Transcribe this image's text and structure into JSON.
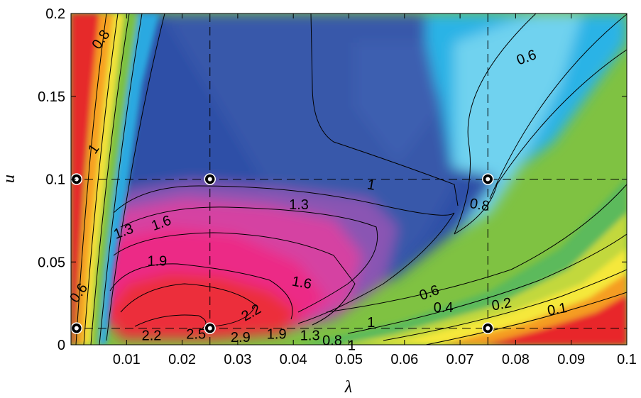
{
  "chart_data": {
    "type": "heatmap",
    "title": "",
    "xlabel": "λ",
    "ylabel": "u",
    "xlim": [
      0,
      0.1
    ],
    "ylim": [
      0,
      0.2
    ],
    "x_ticks": [
      {
        "value": 0.01,
        "label": "0.01"
      },
      {
        "value": 0.02,
        "label": "0.02"
      },
      {
        "value": 0.03,
        "label": "0.03"
      },
      {
        "value": 0.04,
        "label": "0.04"
      },
      {
        "value": 0.05,
        "label": "0.05"
      },
      {
        "value": 0.06,
        "label": "0.06"
      },
      {
        "value": 0.07,
        "label": "0.07"
      },
      {
        "value": 0.08,
        "label": "0.08"
      },
      {
        "value": 0.09,
        "label": "0.09"
      },
      {
        "value": 0.1,
        "label": "0.1"
      }
    ],
    "y_ticks": [
      {
        "value": 0,
        "label": "0"
      },
      {
        "value": 0.05,
        "label": "0.05"
      },
      {
        "value": 0.1,
        "label": "0.1"
      },
      {
        "value": 0.15,
        "label": "0.15"
      },
      {
        "value": 0.2,
        "label": "0.2"
      }
    ],
    "reference_lines": {
      "x": [
        0.025,
        0.075
      ],
      "y": [
        0.01,
        0.1
      ]
    },
    "sample_points": [
      {
        "x": 0.001,
        "y": 0.1
      },
      {
        "x": 0.025,
        "y": 0.1
      },
      {
        "x": 0.075,
        "y": 0.1
      },
      {
        "x": 0.001,
        "y": 0.01
      },
      {
        "x": 0.025,
        "y": 0.01
      },
      {
        "x": 0.075,
        "y": 0.01
      }
    ],
    "contour_labels": [
      {
        "text": "0.8",
        "x": 0.0055,
        "y": 0.184,
        "angle": -55
      },
      {
        "text": "1",
        "x": 0.0042,
        "y": 0.118,
        "angle": -55
      },
      {
        "text": "0.6",
        "x": 0.082,
        "y": 0.173,
        "angle": -20
      },
      {
        "text": "1",
        "x": 0.054,
        "y": 0.096,
        "angle": 10
      },
      {
        "text": "0.8",
        "x": 0.0735,
        "y": 0.084,
        "angle": 10
      },
      {
        "text": "1.3",
        "x": 0.041,
        "y": 0.084,
        "angle": 0
      },
      {
        "text": "1.3",
        "x": 0.0095,
        "y": 0.068,
        "angle": -20
      },
      {
        "text": "1.6",
        "x": 0.0163,
        "y": 0.073,
        "angle": -20
      },
      {
        "text": "1.9",
        "x": 0.0155,
        "y": 0.05,
        "angle": 0
      },
      {
        "text": "1.6",
        "x": 0.0415,
        "y": 0.037,
        "angle": 10
      },
      {
        "text": "0.6",
        "x": 0.0015,
        "y": 0.031,
        "angle": -55
      },
      {
        "text": "2.2",
        "x": 0.0325,
        "y": 0.019,
        "angle": -30
      },
      {
        "text": "1",
        "x": 0.054,
        "y": 0.013,
        "angle": 0
      },
      {
        "text": "0.6",
        "x": 0.0645,
        "y": 0.031,
        "angle": -20
      },
      {
        "text": "0.4",
        "x": 0.067,
        "y": 0.022,
        "angle": 0
      },
      {
        "text": "0.2",
        "x": 0.0775,
        "y": 0.024,
        "angle": -10
      },
      {
        "text": "0.1",
        "x": 0.0875,
        "y": 0.021,
        "angle": -10
      },
      {
        "text": "2.2",
        "x": 0.0145,
        "y": 0.005,
        "angle": 0
      },
      {
        "text": "2.5",
        "x": 0.0225,
        "y": 0.006,
        "angle": 0
      },
      {
        "text": "2.9",
        "x": 0.0305,
        "y": 0.004,
        "angle": 0
      },
      {
        "text": "1.9",
        "x": 0.037,
        "y": 0.006,
        "angle": 0
      },
      {
        "text": "1.3",
        "x": 0.043,
        "y": 0.005,
        "angle": 0
      },
      {
        "text": "0.8",
        "x": 0.047,
        "y": 0.002,
        "angle": 0
      },
      {
        "text": "1",
        "x": 0.0505,
        "y": -0.001,
        "angle": 0
      }
    ]
  }
}
